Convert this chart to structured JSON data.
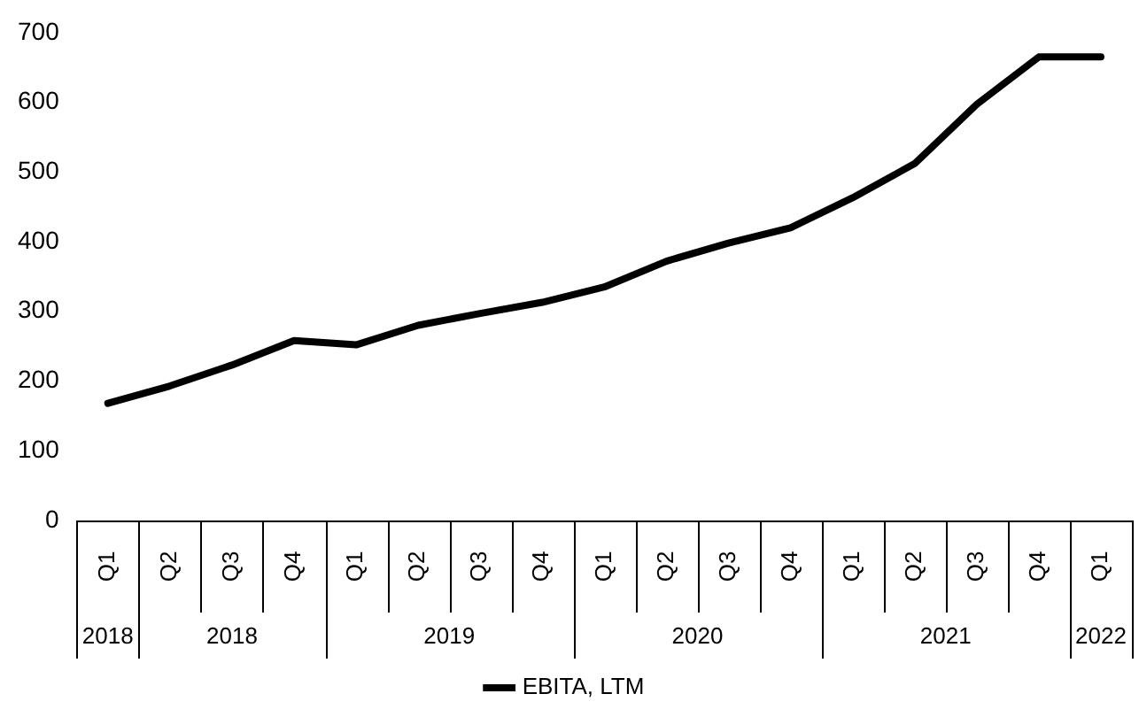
{
  "chart_data": {
    "type": "line",
    "categories": [
      "Q1",
      "Q2",
      "Q3",
      "Q4",
      "Q1",
      "Q2",
      "Q3",
      "Q4",
      "Q1",
      "Q2",
      "Q3",
      "Q4",
      "Q1",
      "Q2",
      "Q3",
      "Q4",
      "Q1"
    ],
    "annotations": [
      "2018",
      "2018",
      "2019",
      "2020",
      "2021",
      "2022"
    ],
    "series": [
      {
        "name": "EBITA, LTM",
        "color": "#000000",
        "values": [
          168,
          193,
          223,
          258,
          252,
          280,
          297,
          313,
          335,
          372,
          398,
          420,
          463,
          512,
          597,
          665,
          665
        ]
      }
    ],
    "ylim": [
      0,
      700
    ],
    "yticks": [
      0,
      100,
      200,
      300,
      400,
      500,
      600,
      700
    ],
    "grid": false,
    "legend": "bottom",
    "marker": "none",
    "line_style": "solid"
  }
}
